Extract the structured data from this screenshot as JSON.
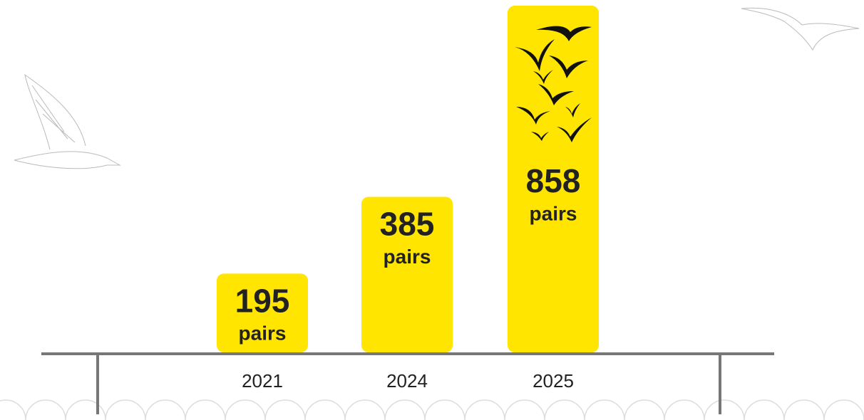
{
  "chart_data": {
    "type": "bar",
    "categories": [
      "2021",
      "2024",
      "2025"
    ],
    "values": [
      195,
      385,
      858
    ],
    "unit": "pairs",
    "color": "#ffe500"
  }
}
